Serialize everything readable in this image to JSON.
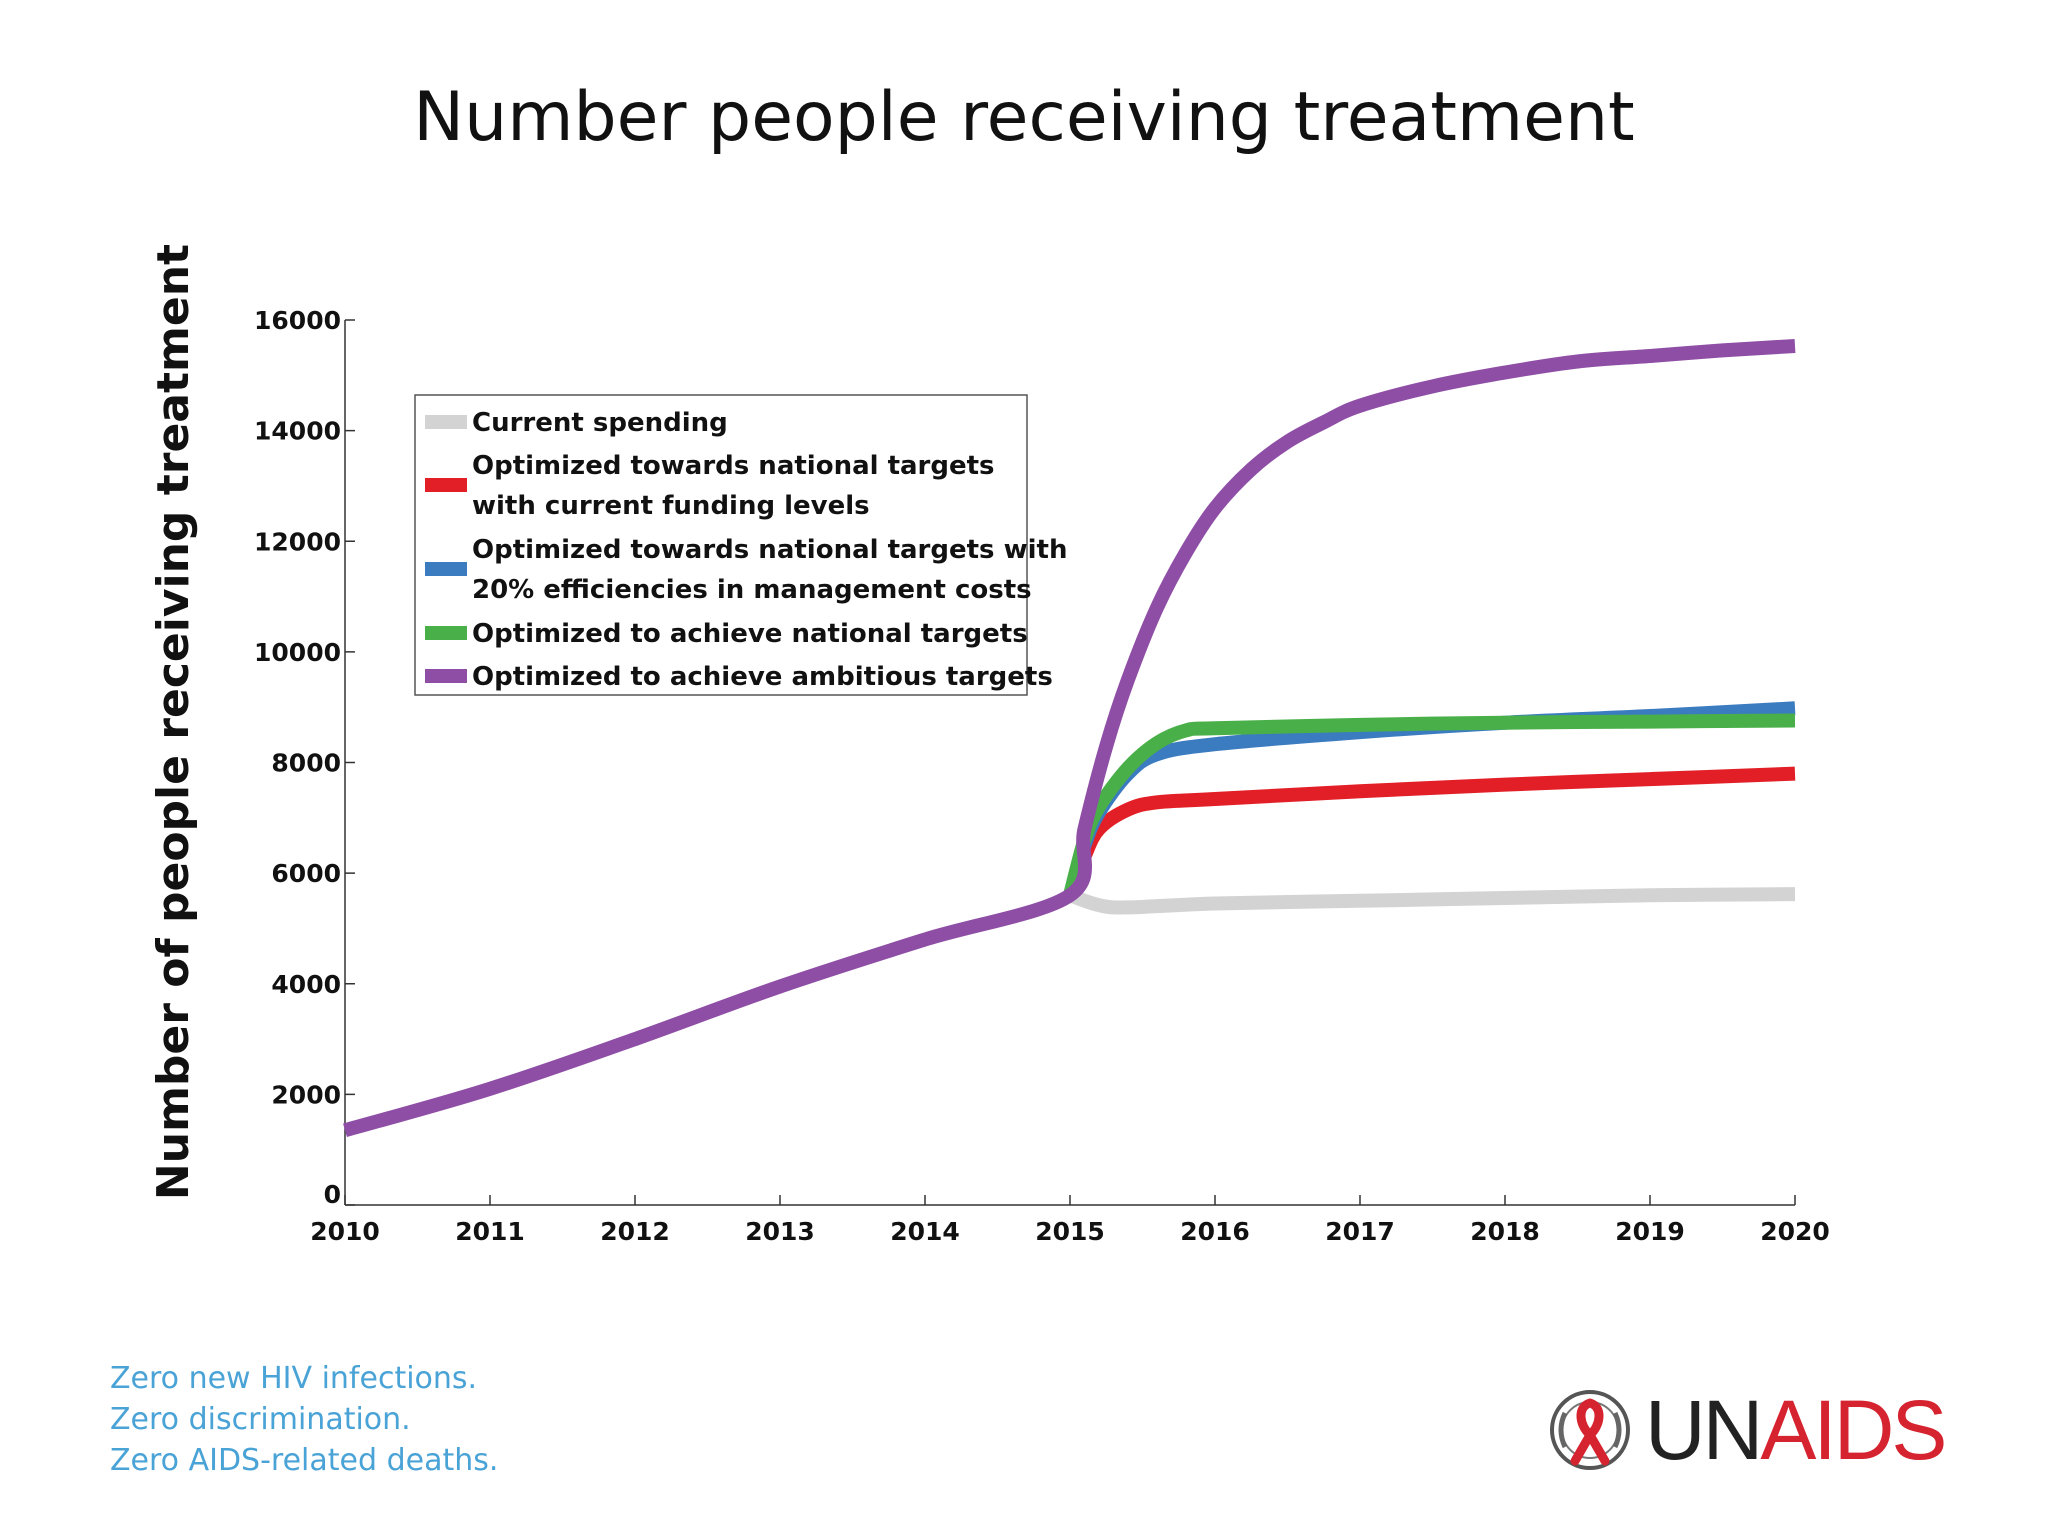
{
  "slide": {
    "title": "Number people receiving treatment",
    "tagline": [
      "Zero new HIV infections.",
      "Zero discrimination.",
      "Zero AIDS-related deaths."
    ],
    "logo": {
      "part1": "UN",
      "part2": "AIDS",
      "text_color": "#222222",
      "accent_color": "#d5232f",
      "emblem_icon": "un-emblem-red-ribbon-icon"
    }
  },
  "chart_data": {
    "type": "line",
    "title": "",
    "xlabel": "",
    "ylabel": "Number of people receiving treatment",
    "xlim": [
      2010,
      2020
    ],
    "ylim": [
      0,
      16000
    ],
    "xticks": [
      2010,
      2011,
      2012,
      2013,
      2014,
      2015,
      2016,
      2017,
      2018,
      2019,
      2020
    ],
    "yticks": [
      0,
      2000,
      4000,
      6000,
      8000,
      10000,
      12000,
      14000,
      16000
    ],
    "grid": false,
    "legend_position": "top-left",
    "series": [
      {
        "name": "Current spending",
        "color": "#d3d3d3",
        "x": [
          2015,
          2015.2,
          2015.4,
          2016,
          2017,
          2018,
          2019,
          2020
        ],
        "y": [
          5600,
          5420,
          5380,
          5450,
          5500,
          5550,
          5600,
          5620
        ]
      },
      {
        "name": "Optimized towards national targets with current funding levels",
        "color": "#e21f26",
        "x": [
          2015,
          2015.1,
          2015.2,
          2015.4,
          2015.6,
          2016,
          2017,
          2018,
          2019,
          2020
        ],
        "y": [
          5600,
          6300,
          6800,
          7150,
          7280,
          7340,
          7480,
          7600,
          7700,
          7800
        ]
      },
      {
        "name": "Optimized towards national targets with 20% efficiencies in management costs",
        "color": "#3b7bbf",
        "x": [
          2015,
          2015.1,
          2015.2,
          2015.4,
          2015.6,
          2016,
          2017,
          2018,
          2019,
          2020
        ],
        "y": [
          5600,
          6500,
          7100,
          7800,
          8150,
          8330,
          8550,
          8720,
          8840,
          8980
        ]
      },
      {
        "name": "Optimized to achieve national targets",
        "color": "#49b049",
        "x": [
          2015,
          2015.1,
          2015.2,
          2015.4,
          2015.6,
          2015.8,
          2016,
          2017,
          2018,
          2019,
          2020
        ],
        "y": [
          5600,
          6600,
          7200,
          7900,
          8350,
          8580,
          8620,
          8680,
          8720,
          8740,
          8760
        ]
      },
      {
        "name": "Optimized to achieve ambitious targets",
        "color": "#8e4ea5",
        "x": [
          2010,
          2011,
          2012,
          2013,
          2014,
          2015,
          2015.1,
          2015.25,
          2015.4,
          2015.6,
          2015.8,
          2016,
          2016.25,
          2016.5,
          2016.75,
          2017,
          2017.5,
          2018,
          2018.5,
          2019,
          2019.5,
          2020
        ],
        "y": [
          1350,
          2100,
          3000,
          3950,
          4800,
          5600,
          6800,
          8300,
          9500,
          10800,
          11800,
          12600,
          13300,
          13800,
          14150,
          14450,
          14800,
          15050,
          15250,
          15350,
          15450,
          15530
        ]
      }
    ],
    "legend_entries": [
      {
        "lines": [
          "Current spending"
        ],
        "color": "#d3d3d3"
      },
      {
        "lines": [
          "Optimized towards national targets",
          "with current funding levels"
        ],
        "color": "#e21f26"
      },
      {
        "lines": [
          "Optimized towards national targets with",
          "20% efficiencies in management costs"
        ],
        "color": "#3b7bbf"
      },
      {
        "lines": [
          "Optimized to achieve national targets"
        ],
        "color": "#49b049"
      },
      {
        "lines": [
          "Optimized to achieve ambitious targets"
        ],
        "color": "#8e4ea5"
      }
    ]
  }
}
